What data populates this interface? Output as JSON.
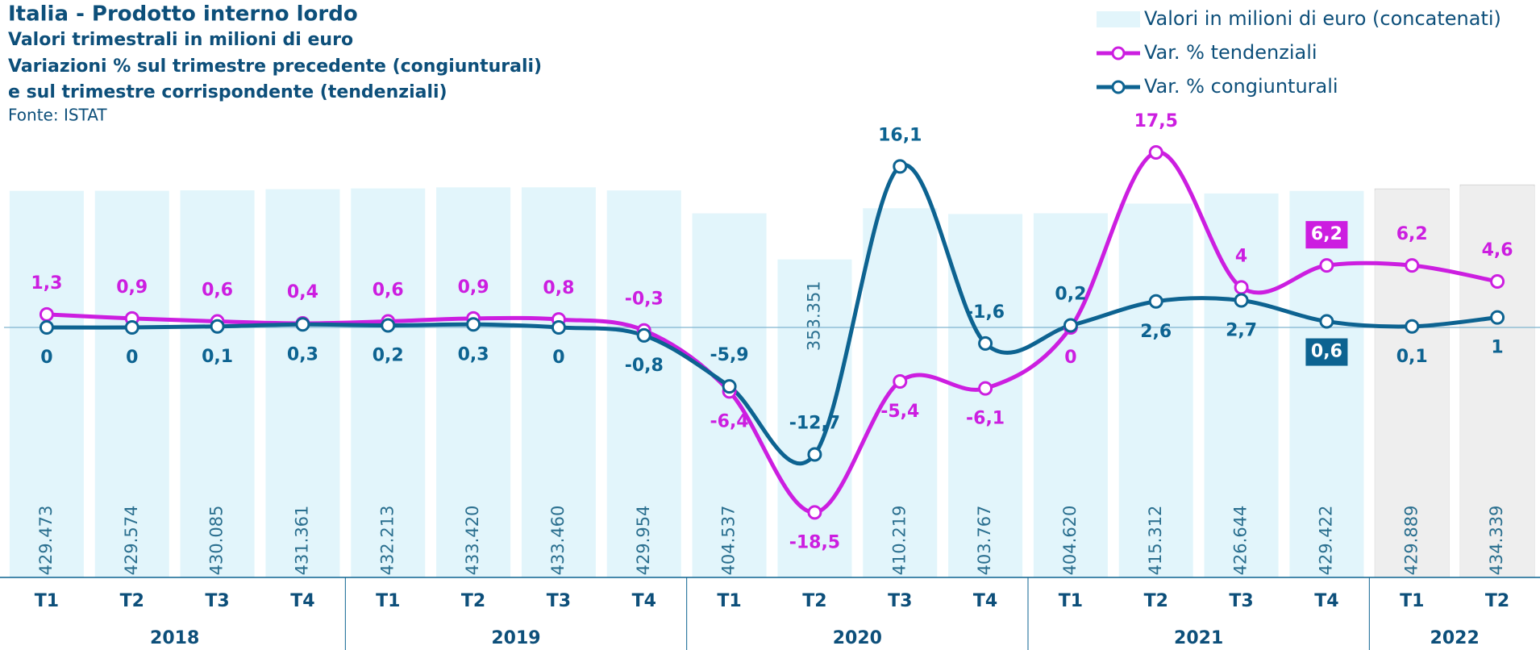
{
  "chart_data": {
    "type": "bar-line",
    "title": "Italia - Prodotto interno lordo",
    "subtitle": [
      "Valori trimestrali in milioni di euro",
      "Variazioni % sul trimestre precedente (congiunturali)",
      "e sul trimestre corrispondente (tendenziali)"
    ],
    "source": "Fonte: ISTAT",
    "categories": [
      {
        "quarter": "T1",
        "year": "2018"
      },
      {
        "quarter": "T2",
        "year": "2018"
      },
      {
        "quarter": "T3",
        "year": "2018"
      },
      {
        "quarter": "T4",
        "year": "2018"
      },
      {
        "quarter": "T1",
        "year": "2019"
      },
      {
        "quarter": "T2",
        "year": "2019"
      },
      {
        "quarter": "T3",
        "year": "2019"
      },
      {
        "quarter": "T4",
        "year": "2019"
      },
      {
        "quarter": "T1",
        "year": "2020"
      },
      {
        "quarter": "T2",
        "year": "2020"
      },
      {
        "quarter": "T3",
        "year": "2020"
      },
      {
        "quarter": "T4",
        "year": "2020"
      },
      {
        "quarter": "T1",
        "year": "2021"
      },
      {
        "quarter": "T2",
        "year": "2021"
      },
      {
        "quarter": "T3",
        "year": "2021"
      },
      {
        "quarter": "T4",
        "year": "2021"
      },
      {
        "quarter": "T1",
        "year": "2022"
      },
      {
        "quarter": "T2",
        "year": "2022"
      }
    ],
    "series": [
      {
        "name": "Valori in milioni di euro (concatenati)",
        "type": "bar",
        "axis": "y2",
        "color": "#e2f5fb",
        "values": [
          429473,
          429574,
          430085,
          431361,
          432213,
          433420,
          433460,
          429954,
          404537,
          353351,
          410219,
          403767,
          404620,
          415312,
          426644,
          429422,
          429889,
          434339
        ],
        "value_labels": [
          "429.473",
          "429.574",
          "430.085",
          "431.361",
          "432.213",
          "433.420",
          "433.460",
          "429.954",
          "404.537",
          "353.351",
          "410.219",
          "403.767",
          "404.620",
          "415.312",
          "426.644",
          "429.422",
          "429.889",
          "434.339"
        ]
      },
      {
        "name": "Var. % tendenziali",
        "type": "line",
        "color": "#cc1ee0",
        "values": [
          1.3,
          0.9,
          0.6,
          0.4,
          0.6,
          0.9,
          0.8,
          -0.3,
          -6.4,
          -18.5,
          -5.4,
          -6.1,
          0,
          17.5,
          4,
          6.2,
          6.2,
          4.6
        ],
        "value_labels": [
          "1,3",
          "0,9",
          "0,6",
          "0,4",
          "0,6",
          "0,9",
          "0,8",
          "-0,3",
          "-6,4",
          "-18,5",
          "-5,4",
          "-6,1",
          "0",
          "17,5",
          "4",
          "6,2",
          "6,2",
          "4,6"
        ]
      },
      {
        "name": "Var. % congiunturali",
        "type": "line",
        "color": "#0d6391",
        "values": [
          0,
          0,
          0.1,
          0.3,
          0.2,
          0.3,
          0,
          -0.8,
          -5.9,
          -12.7,
          16.1,
          -1.6,
          0.2,
          2.6,
          2.7,
          0.6,
          0.1,
          1
        ],
        "value_labels": [
          "0",
          "0",
          "0,1",
          "0,3",
          "0,2",
          "0,3",
          "0",
          "-0,8",
          "-5,9",
          "-12,7",
          "16,1",
          "-1,6",
          "0,2",
          "2,6",
          "2,7",
          "0,6",
          "0,1",
          "1"
        ]
      }
    ],
    "ylim": [
      -25,
      20
    ],
    "y2lim": [
      0,
      500000
    ]
  }
}
